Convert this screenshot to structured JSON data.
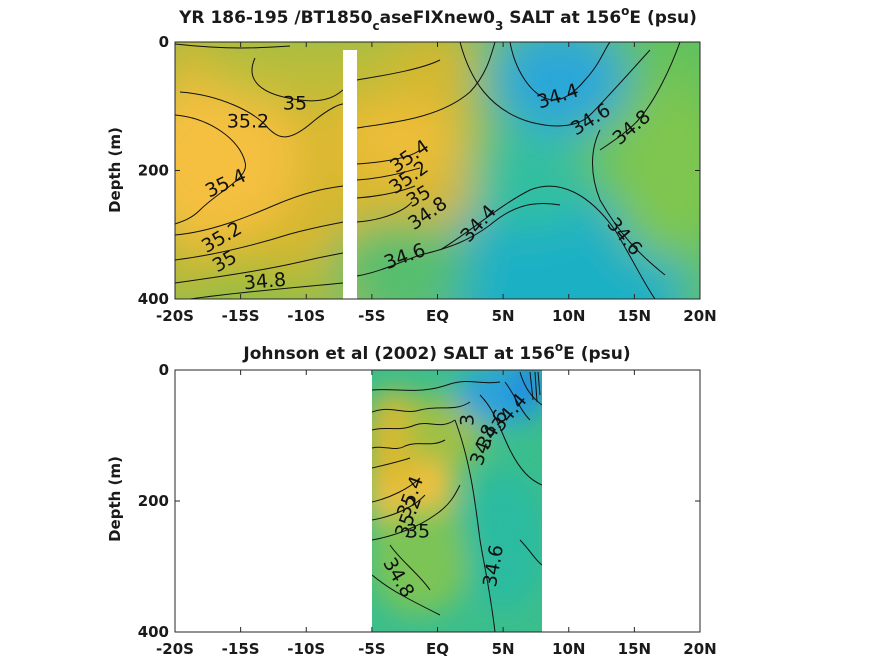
{
  "chart_data": [
    {
      "type": "heatmap",
      "title": "YR 186-195 /BT1850_caseFIXnew0_3 SALT at 156°E (psu)",
      "title_parts": {
        "a": "YR 186-195 /BT1850",
        "sub1": "c",
        "b": "aseFIXnew0",
        "sub2": "3",
        "c": " SALT at 156",
        "sup": "o",
        "d": "E (psu)"
      },
      "ylabel": "Depth (m)",
      "xticks": [
        "-20S",
        "-15S",
        "-10S",
        "-5S",
        "EQ",
        "5N",
        "10N",
        "15N",
        "20N"
      ],
      "yticks": [
        "0",
        "200",
        "400"
      ],
      "xlim": [
        -20,
        20
      ],
      "ylim": [
        0,
        400
      ],
      "contour_labels": [
        "35",
        "35.2",
        "35.4",
        "35.2",
        "35",
        "34.8",
        "35.4",
        "35.2",
        "35",
        "34.8",
        "34.6",
        "34.4",
        "34.4",
        "34.6",
        "34.8",
        "34.6"
      ],
      "masked_x": [
        -7.7,
        -6.6
      ]
    },
    {
      "type": "heatmap",
      "title": "Johnson et al (2002) SALT at 156°E (psu)",
      "title_parts": {
        "a": "Johnson et al (2002) SALT at 156",
        "sup": "o",
        "b": "E (psu)"
      },
      "ylabel": "Depth (m)",
      "xticks": [
        "-20S",
        "-15S",
        "-10S",
        "-5S",
        "EQ",
        "5N",
        "10N",
        "15N",
        "20N"
      ],
      "yticks": [
        "0",
        "200",
        "400"
      ],
      "xlim": [
        -20,
        20
      ],
      "ylim": [
        0,
        400
      ],
      "data_extent_x": [
        -5,
        8
      ],
      "contour_labels": [
        "34.4",
        "34.6",
        "34.8",
        "3",
        "35.4",
        "35.2",
        "35",
        "34.8",
        "34.6"
      ]
    }
  ],
  "colors": {
    "yellow": "#f7c23f",
    "gold": "#d9b92e",
    "green": "#79c44e",
    "teal": "#27bba4",
    "blue": "#199ee4"
  }
}
